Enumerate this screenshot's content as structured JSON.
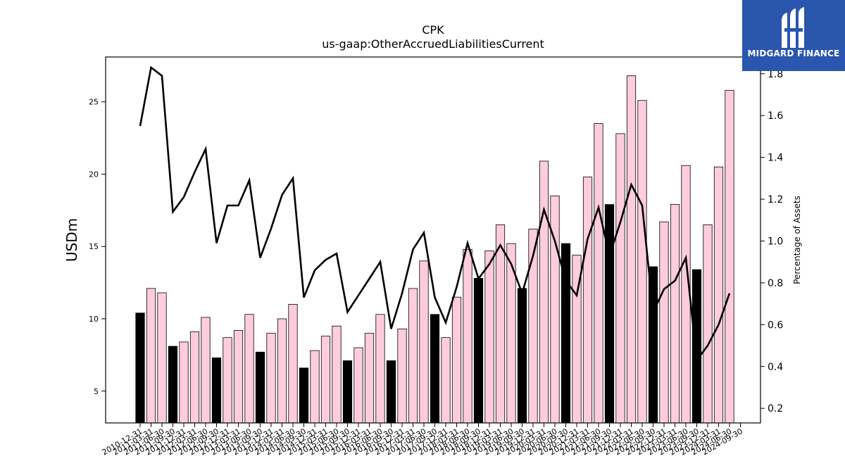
{
  "chart_data": {
    "type": "bar",
    "title": "CPK",
    "subtitle": "us-gaap:OtherAccruedLiabilitiesCurrent",
    "ylabel": "USDm",
    "y2label": "Percentage of Assets",
    "ylim": [
      2.8,
      28.1
    ],
    "y2lim": [
      0.13,
      1.88
    ],
    "yticks": [
      5,
      10,
      15,
      20,
      25
    ],
    "y2ticks": [
      0.2,
      0.4,
      0.6,
      0.8,
      1.0,
      1.2,
      1.4,
      1.6,
      1.8
    ],
    "categories": [
      "2010-12-31",
      "2011-03-31",
      "2011-06-30",
      "2011-09-30",
      "2011-12-31",
      "2012-03-31",
      "2012-06-30",
      "2012-09-30",
      "2012-12-31",
      "2013-03-31",
      "2013-06-30",
      "2013-09-30",
      "2013-12-31",
      "2014-03-31",
      "2014-06-30",
      "2014-09-30",
      "2014-12-31",
      "2015-03-31",
      "2015-06-30",
      "2015-09-30",
      "2015-12-31",
      "2016-03-31",
      "2016-06-30",
      "2016-09-30",
      "2016-12-31",
      "2017-03-31",
      "2017-06-30",
      "2017-09-30",
      "2017-12-31",
      "2018-03-31",
      "2018-06-30",
      "2018-09-30",
      "2018-12-31",
      "2019-03-31",
      "2019-06-30",
      "2019-09-30",
      "2019-12-31",
      "2020-03-31",
      "2020-06-30",
      "2020-09-30",
      "2020-12-31",
      "2021-03-31",
      "2021-06-30",
      "2021-09-30",
      "2021-12-31",
      "2022-03-31",
      "2022-06-30",
      "2022-09-30",
      "2022-12-31",
      "2023-03-31",
      "2023-06-30",
      "2023-09-30",
      "2023-12-31",
      "2024-03-31",
      "2024-06-30",
      "2024-09-30"
    ],
    "series": [
      {
        "kind": "bar",
        "values": [
          10.4,
          12.1,
          11.8,
          8.1,
          8.4,
          9.1,
          10.1,
          7.3,
          8.7,
          9.2,
          10.3,
          7.7,
          9.0,
          10.0,
          11.0,
          6.6,
          7.8,
          8.8,
          9.5,
          7.1,
          8.0,
          9.0,
          10.3,
          7.1,
          9.3,
          12.1,
          14.0,
          10.3,
          8.7,
          11.5,
          14.8,
          12.8,
          14.7,
          16.5,
          15.2,
          12.1,
          16.2,
          20.9,
          18.5,
          15.2,
          14.4,
          19.8,
          23.5,
          17.9,
          22.8,
          26.8,
          25.1,
          13.6,
          16.7,
          17.9,
          20.6,
          13.4,
          16.5,
          20.5,
          25.8,
          null
        ],
        "highlight": [
          true,
          false,
          false,
          true,
          false,
          false,
          false,
          true,
          false,
          false,
          false,
          true,
          false,
          false,
          false,
          true,
          false,
          false,
          false,
          true,
          false,
          false,
          false,
          true,
          false,
          false,
          false,
          true,
          false,
          false,
          false,
          true,
          false,
          false,
          false,
          true,
          false,
          false,
          false,
          true,
          false,
          false,
          false,
          true,
          false,
          false,
          false,
          true,
          false,
          false,
          false,
          true,
          false,
          false,
          false,
          false
        ],
        "color": "#ffccdd",
        "highlight_color": "#000000"
      },
      {
        "kind": "line",
        "axis": "right",
        "values": [
          1.55,
          1.83,
          1.79,
          1.14,
          1.21,
          1.33,
          1.44,
          0.99,
          1.17,
          1.17,
          1.29,
          0.92,
          1.06,
          1.22,
          1.3,
          0.73,
          0.86,
          0.91,
          0.94,
          0.66,
          0.74,
          0.82,
          0.9,
          0.58,
          0.75,
          0.96,
          1.04,
          0.73,
          0.61,
          0.78,
          0.99,
          0.82,
          0.89,
          0.98,
          0.89,
          0.75,
          0.93,
          1.15,
          1.0,
          0.81,
          0.74,
          1.01,
          1.16,
          0.93,
          1.09,
          1.27,
          1.17,
          0.66,
          0.77,
          0.81,
          0.92,
          0.43,
          0.5,
          0.6,
          0.75,
          null
        ],
        "color": "#000000"
      }
    ],
    "grid": false
  },
  "logo": {
    "text": "MIDGARD FINANCE"
  }
}
